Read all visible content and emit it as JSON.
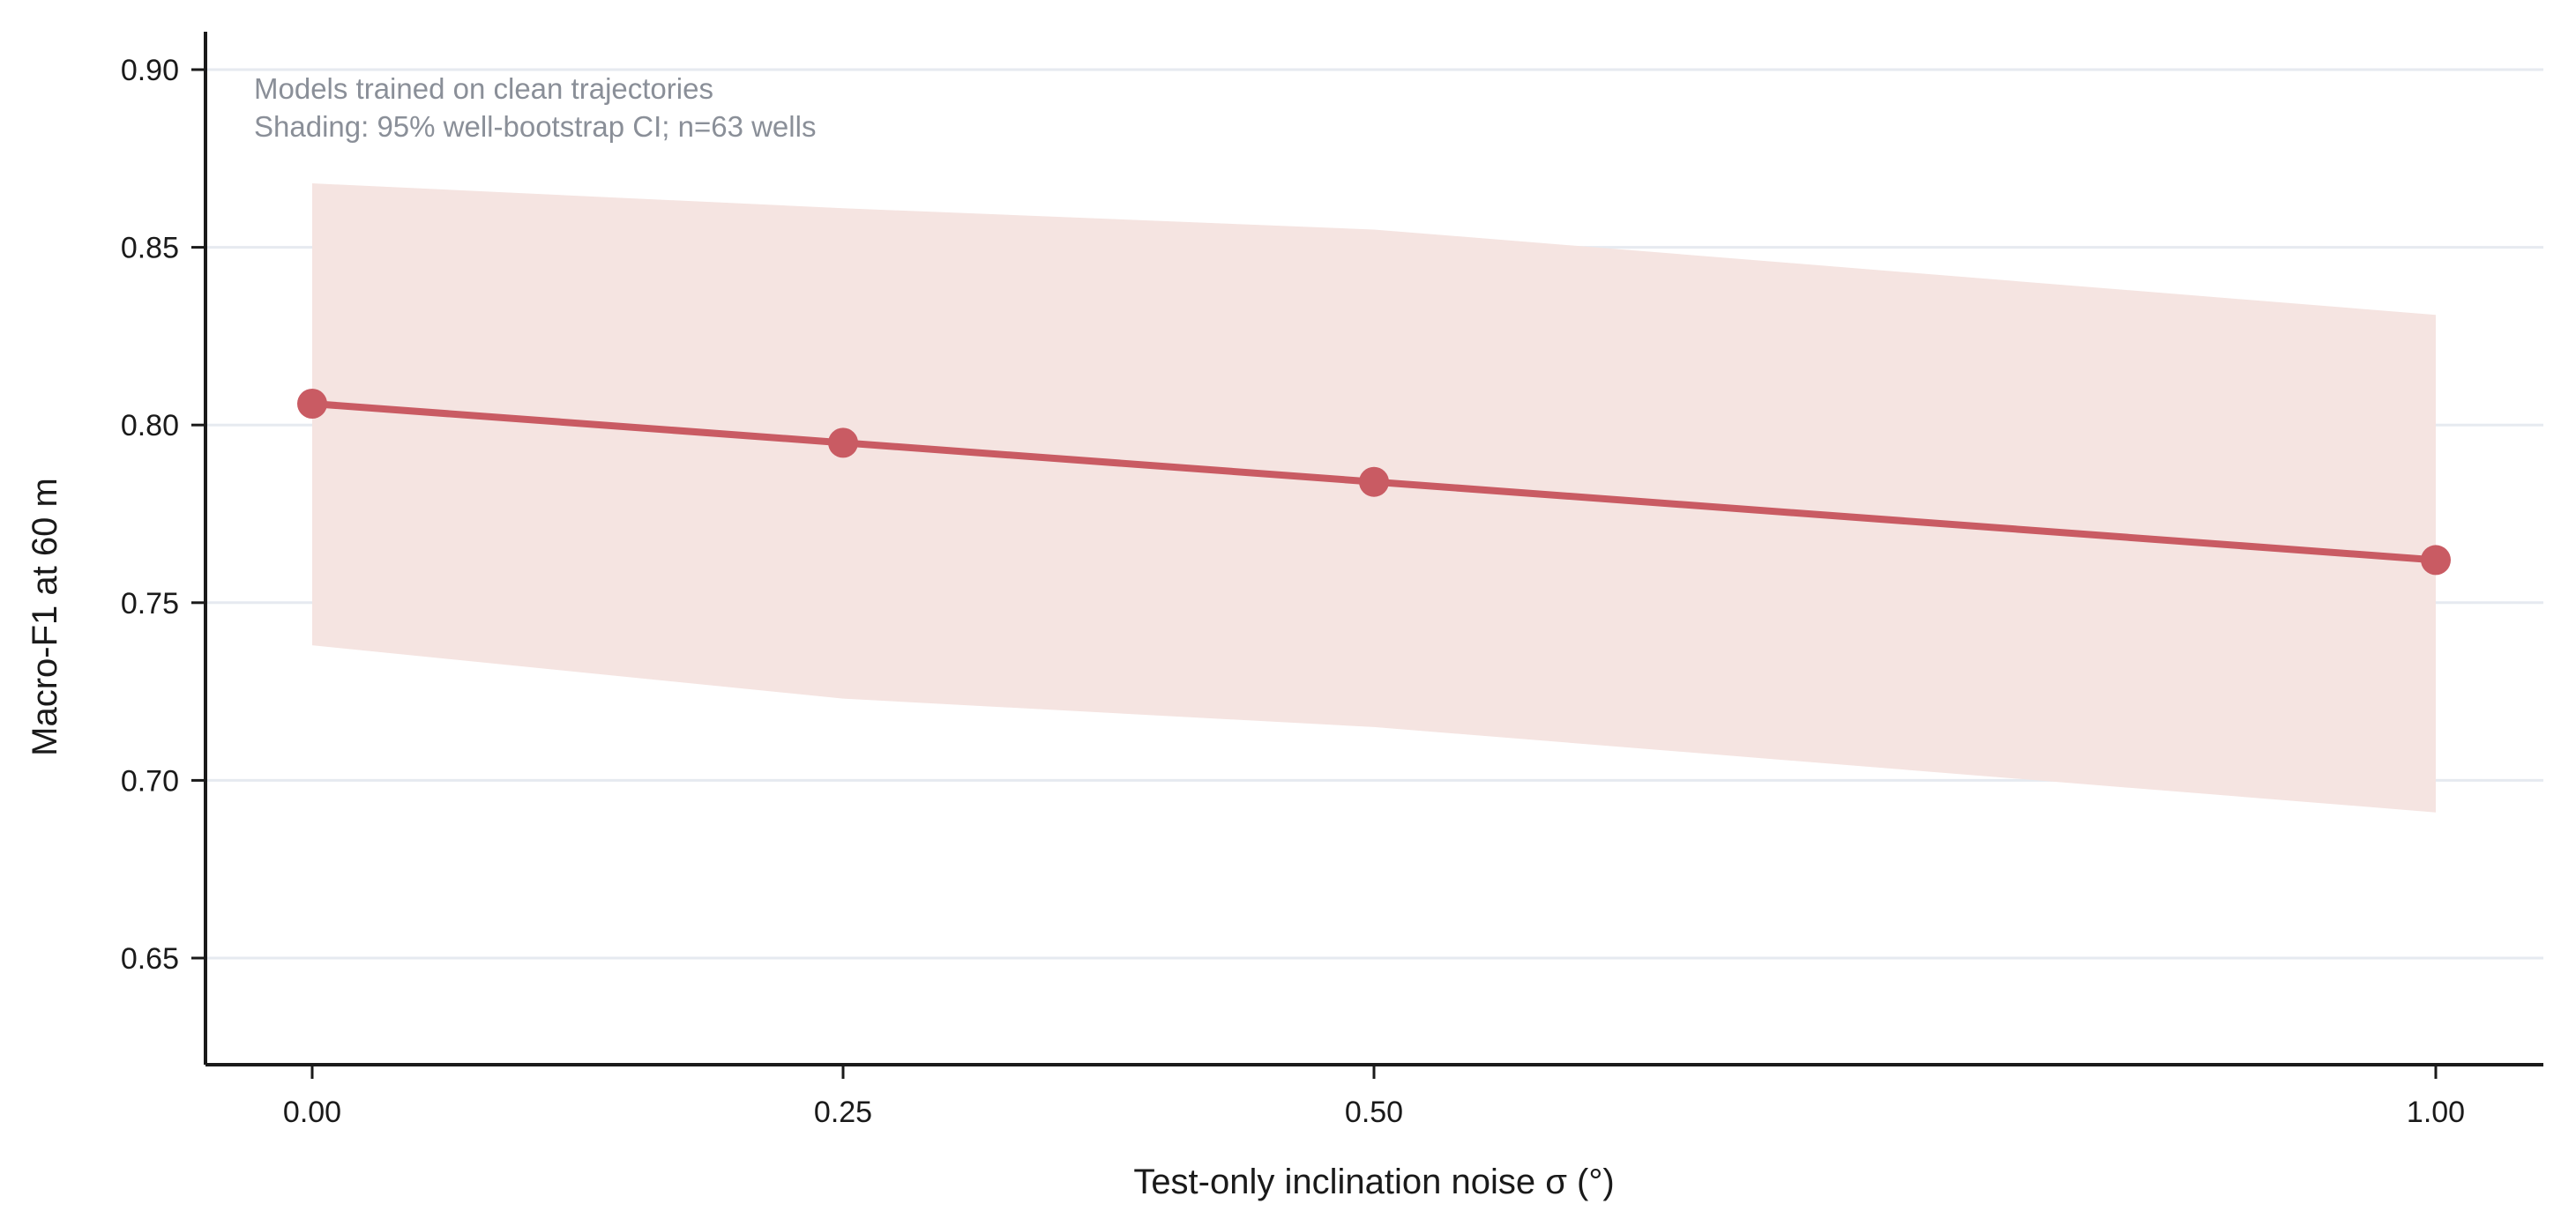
{
  "chart_data": {
    "type": "line",
    "title": "",
    "xlabel": "Test-only inclination noise σ (°)",
    "ylabel": "Macro-F1 at 60 m",
    "x": [
      0.0,
      0.25,
      0.5,
      1.0
    ],
    "x_tick_labels": [
      "0.00",
      "0.25",
      "0.50",
      "1.00"
    ],
    "y_ticks": [
      0.65,
      0.7,
      0.75,
      0.8,
      0.85,
      0.9
    ],
    "y_tick_labels": [
      "0.65",
      "0.70",
      "0.75",
      "0.80",
      "0.85",
      "0.90"
    ],
    "xlim": [
      -0.05,
      1.05
    ],
    "ylim": [
      0.62,
      0.91
    ],
    "grid": "horizontal",
    "series": [
      {
        "values": [
          0.806,
          0.795,
          0.784,
          0.762
        ],
        "ci_lower": [
          0.738,
          0.723,
          0.715,
          0.691
        ],
        "ci_upper": [
          0.868,
          0.861,
          0.855,
          0.831
        ],
        "color": "#c95b63",
        "ci_color": "#f5e4e1"
      }
    ],
    "annotations": [
      "Models trained on clean trajectories",
      "Shading: 95% well-bootstrap CI; n=63 wells"
    ]
  }
}
